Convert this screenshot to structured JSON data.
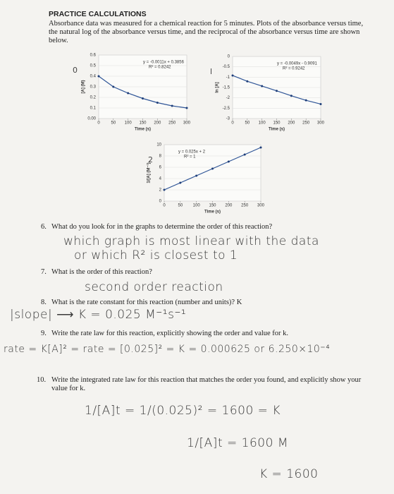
{
  "header": {
    "title": "PRACTICE CALCULATIONS",
    "intro": "Absorbance data was measured for a chemical reaction for 5 minutes. Plots of the absorbance versus time, the natural log of the absorbance versus time, and the reciprocal of the absorbance versus time are shown below."
  },
  "graphs": [
    {
      "annotation": "0",
      "y_label": "[A] (M)",
      "x_label": "Time (s)",
      "equation": "y = -0.0011x + 0.3856",
      "r_squared": "R² = 0.8242",
      "xlim": [
        0,
        300
      ],
      "ylim": [
        0,
        0.6
      ],
      "xticks": [
        0,
        50,
        100,
        150,
        200,
        250,
        300
      ],
      "yticks": [
        {
          "value": 0,
          "label": "0.00"
        },
        0.1,
        0.2,
        0.3,
        0.4,
        0.5,
        0.6
      ],
      "x": [
        0,
        50,
        100,
        150,
        200,
        250,
        300
      ],
      "values": [
        0.4,
        0.3,
        0.24,
        0.19,
        0.15,
        0.12,
        0.1
      ]
    },
    {
      "annotation": "l",
      "y_label": "ln [A]",
      "x_label": "Time (s)",
      "equation": "y = -0.0049x - 0.9091",
      "r_squared": "R² = 0.9242",
      "xlim": [
        0,
        300
      ],
      "ylim": [
        -3,
        0
      ],
      "xticks": [
        0,
        50,
        100,
        150,
        200,
        250,
        300
      ],
      "yticks": [
        0,
        -0.5,
        -1,
        -1.5,
        -2,
        -2.5,
        -3
      ],
      "x": [
        0,
        50,
        100,
        150,
        200,
        250,
        300
      ],
      "values": [
        -0.92,
        -1.2,
        -1.43,
        -1.66,
        -1.9,
        -2.12,
        -2.3
      ]
    },
    {
      "annotation": "2",
      "y_label": "1/[A] (M⁻¹)",
      "x_label": "Time (s)",
      "equation": "y = 0.025x + 2",
      "r_squared": "R² = 1",
      "xlim": [
        0,
        300
      ],
      "ylim": [
        0,
        10
      ],
      "xticks": [
        0,
        50,
        100,
        150,
        200,
        250,
        300
      ],
      "yticks": [
        0,
        2,
        4,
        6,
        8,
        10
      ],
      "x": [
        0,
        50,
        100,
        150,
        200,
        250,
        300
      ],
      "values": [
        2,
        3.25,
        4.5,
        5.75,
        7,
        8.25,
        9.5
      ]
    }
  ],
  "questions": [
    {
      "number": "6.",
      "text": "What do you look for in the graphs to determine the order of this reaction?",
      "answers": [
        "which graph is most linear with the data",
        "or which R² is closest to 1"
      ]
    },
    {
      "number": "7.",
      "text": "What is the order of this reaction?",
      "answers": [
        "second order reaction"
      ]
    },
    {
      "number": "8.",
      "text": "What is the rate constant for this reaction (number and units)? K",
      "answers": [
        "|slope| ⟶ K = 0.025 M⁻¹s⁻¹"
      ]
    },
    {
      "number": "9.",
      "text": "Write the rate law for this reaction, explicitly showing the order and value for k.",
      "answers": [
        "rate = K[A]² = rate = [0.025]² = K = 0.000625 or 6.250×10⁻⁴"
      ]
    },
    {
      "number": "10.",
      "text": "Write the integrated rate law for this reaction that matches the order you found, and explicitly show your value for k.",
      "answers": [
        "1/[A]t = 1/(0.025)²   =  1600 = K",
        "1/[A]t = 1600 M",
        "K = 1600"
      ]
    }
  ]
}
